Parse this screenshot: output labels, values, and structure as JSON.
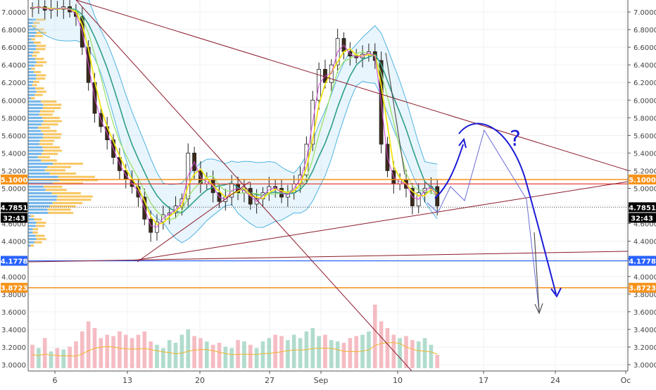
{
  "chart_data": {
    "type": "candlestick",
    "y_axis": {
      "ticks": [
        "7.0000",
        "6.8000",
        "6.6000",
        "6.4000",
        "6.2000",
        "6.0000",
        "5.8000",
        "5.6000",
        "5.4000",
        "5.2000",
        "5.0000",
        "4.8000",
        "4.6000",
        "4.4000",
        "4.2000",
        "4.0000",
        "3.8000",
        "3.6000",
        "3.4000",
        "3.2000",
        "3.0000"
      ],
      "range": [
        2.95,
        7.1
      ]
    },
    "x_axis": {
      "ticks": [
        "6",
        "13",
        "20",
        "27",
        "Sep",
        "10",
        "17",
        "24",
        "Oc"
      ]
    },
    "price_levels": [
      {
        "label": "5.1000",
        "value": 5.1,
        "color": "#f7931a"
      },
      {
        "label": "4.7851",
        "value": 4.7851,
        "color": "#000000",
        "sub_label": "32:43"
      },
      {
        "label": "4.1778",
        "value": 4.1778,
        "color": "#2962ff"
      },
      {
        "label": "3.8723",
        "value": 3.8723,
        "color": "#f7931a"
      }
    ],
    "annotations": [
      {
        "type": "text",
        "text": "?",
        "color": "#1a1ad6"
      }
    ],
    "price_path": [
      [
        0,
        7.05
      ],
      [
        1,
        7.06
      ],
      [
        2,
        7.02
      ],
      [
        3,
        7.04
      ],
      [
        4,
        7.03
      ],
      [
        5,
        7.06
      ],
      [
        6,
        7.0
      ],
      [
        7,
        6.95
      ],
      [
        8,
        6.6
      ],
      [
        9,
        6.2
      ],
      [
        10,
        5.85
      ],
      [
        11,
        5.7
      ],
      [
        12,
        5.55
      ],
      [
        13,
        5.35
      ],
      [
        14,
        5.2
      ],
      [
        15,
        5.1
      ],
      [
        16,
        5.02
      ],
      [
        17,
        4.9
      ],
      [
        18,
        4.65
      ],
      [
        19,
        4.5
      ],
      [
        20,
        4.62
      ],
      [
        21,
        4.7
      ],
      [
        22,
        4.72
      ],
      [
        23,
        4.8
      ],
      [
        24,
        4.88
      ],
      [
        25,
        5.4
      ],
      [
        26,
        5.2
      ],
      [
        27,
        5.05
      ],
      [
        28,
        5.1
      ],
      [
        29,
        4.95
      ],
      [
        30,
        4.85
      ],
      [
        31,
        4.9
      ],
      [
        32,
        5.05
      ],
      [
        33,
        4.95
      ],
      [
        34,
        5.0
      ],
      [
        35,
        4.82
      ],
      [
        36,
        4.88
      ],
      [
        37,
        4.95
      ],
      [
        38,
        5.02
      ],
      [
        39,
        5.0
      ],
      [
        40,
        4.9
      ],
      [
        41,
        4.95
      ],
      [
        42,
        5.05
      ],
      [
        43,
        5.15
      ],
      [
        44,
        5.5
      ],
      [
        45,
        6.0
      ],
      [
        46,
        6.35
      ],
      [
        47,
        6.2
      ],
      [
        48,
        6.4
      ],
      [
        49,
        6.7
      ],
      [
        50,
        6.55
      ],
      [
        51,
        6.5
      ],
      [
        52,
        6.48
      ],
      [
        53,
        6.52
      ],
      [
        54,
        6.55
      ],
      [
        55,
        6.45
      ],
      [
        56,
        5.5
      ],
      [
        57,
        5.2
      ],
      [
        58,
        5.05
      ],
      [
        59,
        5.1
      ],
      [
        60,
        5.0
      ],
      [
        61,
        4.8
      ],
      [
        62,
        4.95
      ],
      [
        63,
        5.0
      ],
      [
        64,
        5.02
      ],
      [
        65,
        4.8
      ]
    ],
    "volume": [
      0.35,
      0.3,
      0.45,
      0.25,
      0.3,
      0.28,
      0.32,
      0.4,
      0.55,
      0.7,
      0.6,
      0.45,
      0.5,
      0.48,
      0.55,
      0.5,
      0.45,
      0.5,
      0.55,
      0.4,
      0.35,
      0.3,
      0.42,
      0.38,
      0.5,
      0.58,
      0.48,
      0.45,
      0.4,
      0.35,
      0.38,
      0.32,
      0.3,
      0.42,
      0.4,
      0.35,
      0.3,
      0.4,
      0.45,
      0.5,
      0.48,
      0.42,
      0.5,
      0.45,
      0.55,
      0.6,
      0.48,
      0.5,
      0.42,
      0.4,
      0.38,
      0.45,
      0.48,
      0.5,
      0.55,
      0.95,
      0.7,
      0.6,
      0.5,
      0.45,
      0.48,
      0.42,
      0.4,
      0.45,
      0.35,
      0.2
    ]
  }
}
